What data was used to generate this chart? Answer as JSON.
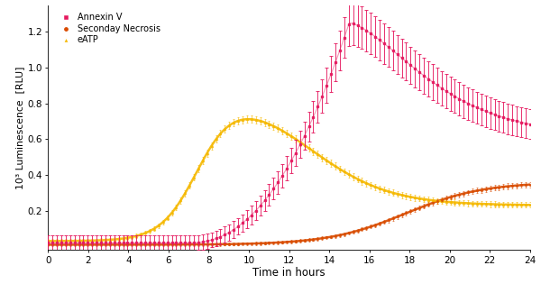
{
  "title": "",
  "xlabel": "Time in hours",
  "ylabel": "10³ Luminescence  [RLU]",
  "xlim": [
    0,
    24
  ],
  "ylim": [
    -0.02,
    1.35
  ],
  "yticks": [
    0.2,
    0.4,
    0.6,
    0.8,
    1.0,
    1.2
  ],
  "xticks": [
    0,
    2,
    4,
    6,
    8,
    10,
    12,
    14,
    16,
    18,
    20,
    22,
    24
  ],
  "colors": {
    "annexin": "#e5195f",
    "necrosis": "#d94b00",
    "eATP": "#f5b800"
  },
  "figsize": [
    6.0,
    3.15
  ],
  "dpi": 100
}
